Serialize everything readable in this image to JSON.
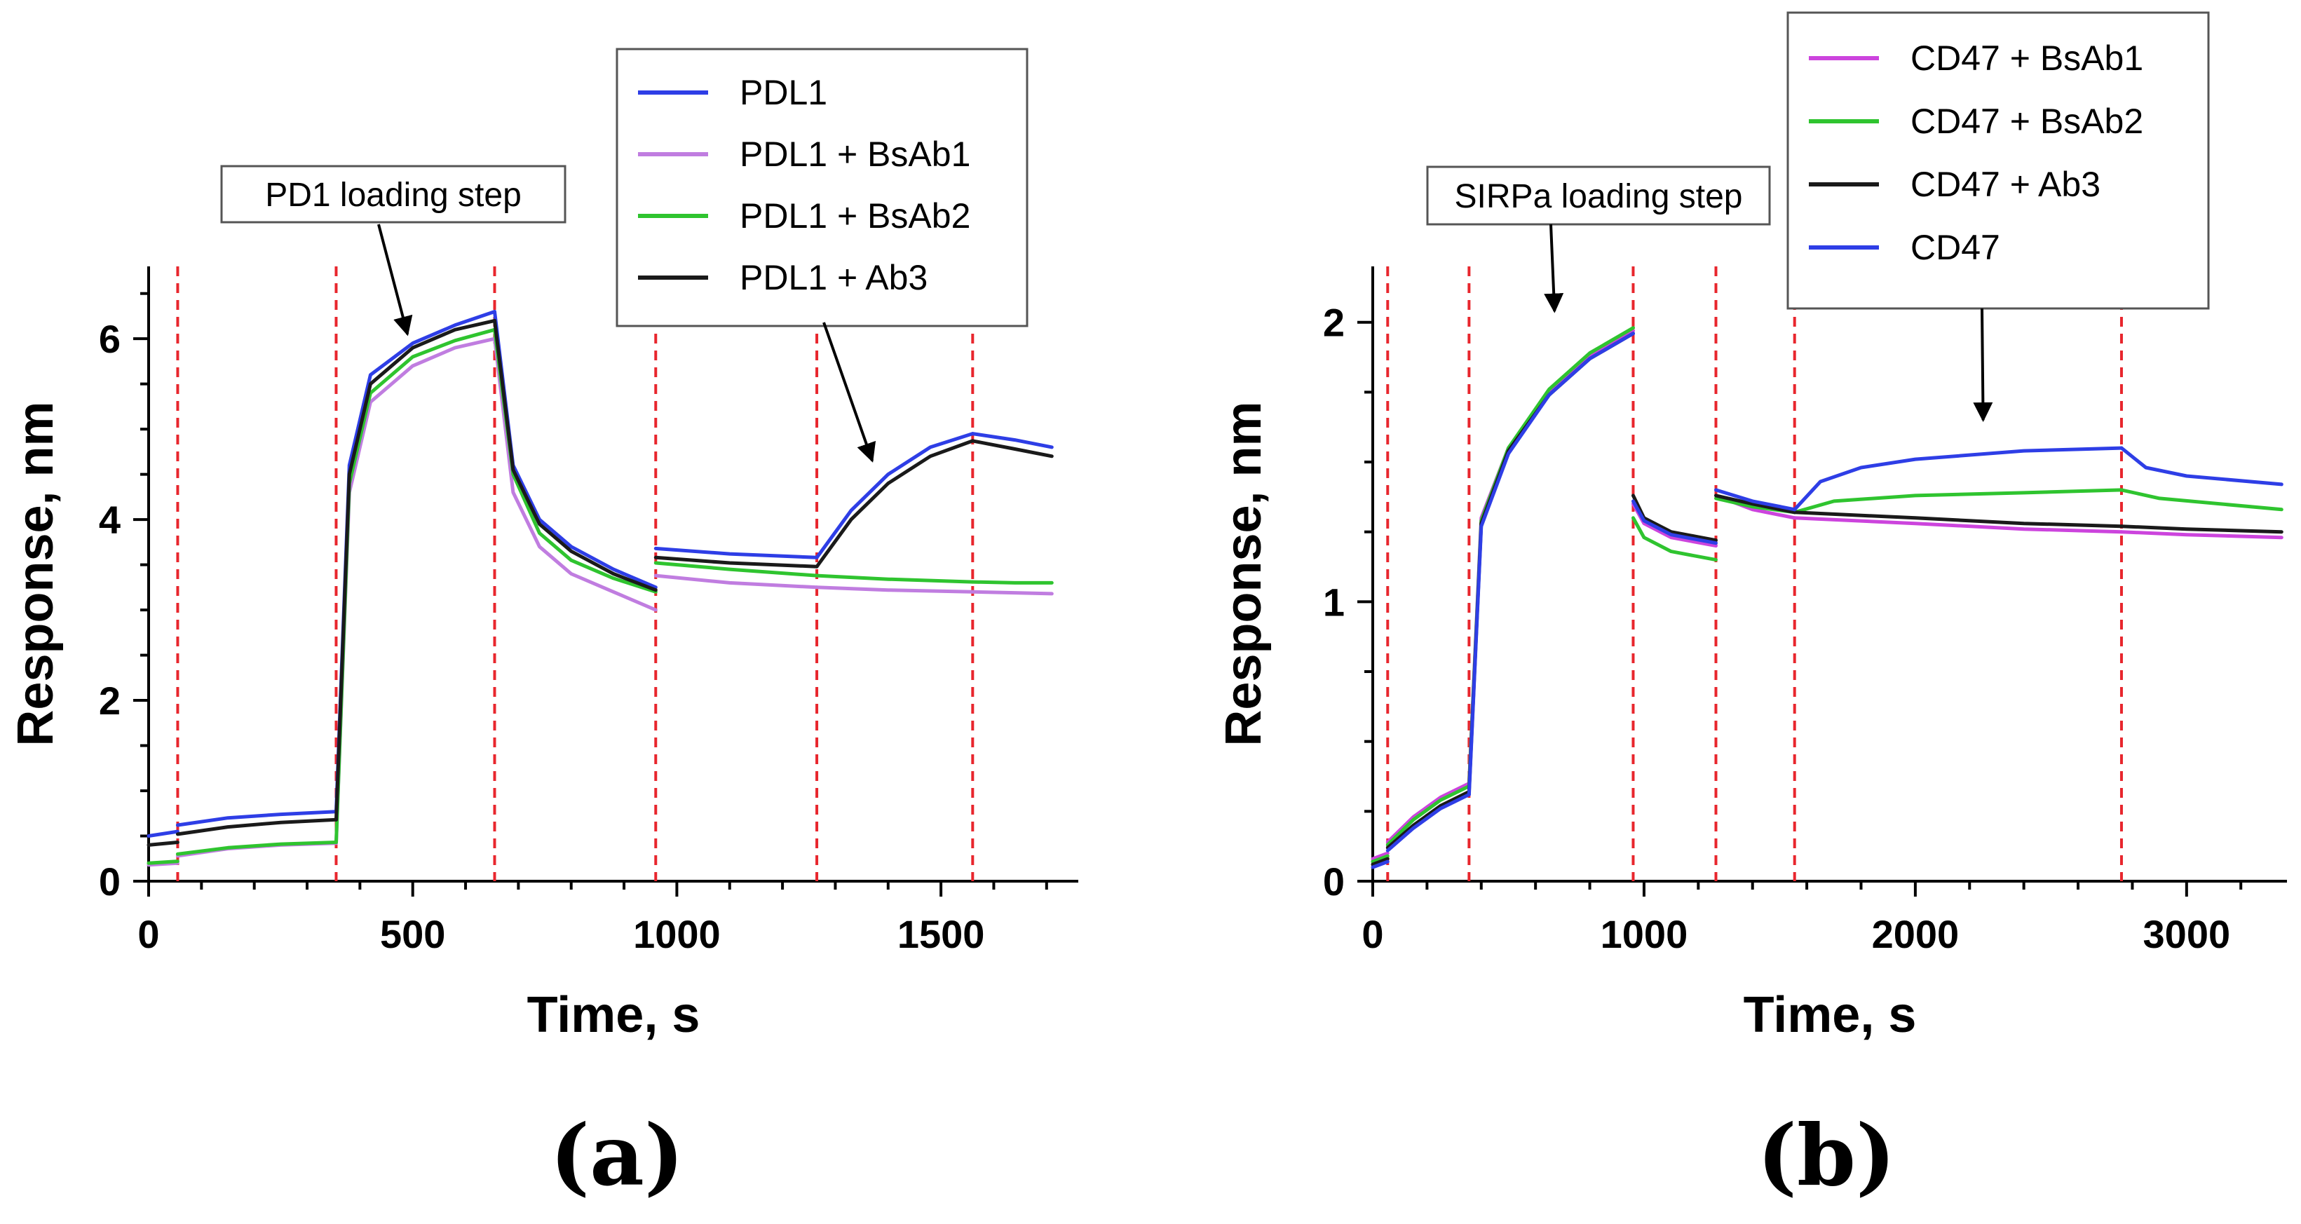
{
  "chart_data": [
    {
      "type": "line",
      "panel_label": "(a)",
      "xlabel": "Time, s",
      "ylabel": "Response, nm",
      "xlim": [
        0,
        1760
      ],
      "ylim": [
        0,
        6.8
      ],
      "xticks": [
        0,
        500,
        1000,
        1500
      ],
      "yticks": [
        0,
        2,
        4,
        6
      ],
      "step_boundaries": [
        55,
        355,
        655,
        960,
        1265,
        1560
      ],
      "legend": {
        "placement": "top-right"
      },
      "annotations": [
        {
          "text": "PD1 loading step",
          "arrow_to": [
            490,
            6.05
          ]
        },
        {
          "arrow_to": [
            1370,
            4.65
          ]
        }
      ],
      "series": [
        {
          "name": "PDL1",
          "color": "#2e3ee6",
          "segments": [
            {
              "x": [
                0,
                55
              ],
              "y": [
                0.5,
                0.55
              ]
            },
            {
              "x": [
                55,
                150,
                250,
                355
              ],
              "y": [
                0.62,
                0.7,
                0.74,
                0.77
              ]
            },
            {
              "x": [
                355,
                380,
                420,
                500,
                580,
                655
              ],
              "y": [
                0.77,
                4.6,
                5.6,
                5.95,
                6.15,
                6.3
              ]
            },
            {
              "x": [
                655,
                690,
                740,
                800,
                880,
                960
              ],
              "y": [
                6.3,
                4.6,
                4.0,
                3.7,
                3.45,
                3.25
              ]
            },
            {
              "x": [
                960,
                1100,
                1265
              ],
              "y": [
                3.68,
                3.62,
                3.58
              ]
            },
            {
              "x": [
                1265,
                1330,
                1400,
                1480,
                1560
              ],
              "y": [
                3.58,
                4.1,
                4.5,
                4.8,
                4.95
              ]
            },
            {
              "x": [
                1560,
                1640,
                1710
              ],
              "y": [
                4.95,
                4.88,
                4.8
              ]
            }
          ]
        },
        {
          "name": "PDL1 + BsAb1",
          "color": "#c07de0",
          "segments": [
            {
              "x": [
                0,
                55
              ],
              "y": [
                0.18,
                0.2
              ]
            },
            {
              "x": [
                55,
                150,
                250,
                355
              ],
              "y": [
                0.28,
                0.36,
                0.4,
                0.42
              ]
            },
            {
              "x": [
                355,
                380,
                420,
                500,
                580,
                655
              ],
              "y": [
                0.42,
                4.3,
                5.3,
                5.7,
                5.9,
                6.0
              ]
            },
            {
              "x": [
                655,
                690,
                740,
                800,
                880,
                960
              ],
              "y": [
                6.0,
                4.3,
                3.7,
                3.4,
                3.2,
                3.0
              ]
            },
            {
              "x": [
                960,
                1100,
                1265
              ],
              "y": [
                3.38,
                3.3,
                3.25
              ]
            },
            {
              "x": [
                1265,
                1400,
                1560
              ],
              "y": [
                3.25,
                3.22,
                3.2
              ]
            },
            {
              "x": [
                1560,
                1640,
                1710
              ],
              "y": [
                3.2,
                3.19,
                3.18
              ]
            }
          ]
        },
        {
          "name": "PDL1 + BsAb2",
          "color": "#2fc42f",
          "segments": [
            {
              "x": [
                0,
                55
              ],
              "y": [
                0.2,
                0.22
              ]
            },
            {
              "x": [
                55,
                150,
                250,
                355
              ],
              "y": [
                0.3,
                0.37,
                0.41,
                0.43
              ]
            },
            {
              "x": [
                355,
                380,
                420,
                500,
                580,
                655
              ],
              "y": [
                0.43,
                4.4,
                5.4,
                5.8,
                5.98,
                6.1
              ]
            },
            {
              "x": [
                655,
                690,
                740,
                800,
                880,
                960
              ],
              "y": [
                6.1,
                4.5,
                3.85,
                3.55,
                3.35,
                3.2
              ]
            },
            {
              "x": [
                960,
                1100,
                1265
              ],
              "y": [
                3.52,
                3.45,
                3.38
              ]
            },
            {
              "x": [
                1265,
                1400,
                1560
              ],
              "y": [
                3.38,
                3.34,
                3.31
              ]
            },
            {
              "x": [
                1560,
                1640,
                1710
              ],
              "y": [
                3.31,
                3.3,
                3.3
              ]
            }
          ]
        },
        {
          "name": "PDL1 + Ab3",
          "color": "#1a1a1a",
          "segments": [
            {
              "x": [
                0,
                55
              ],
              "y": [
                0.4,
                0.43
              ]
            },
            {
              "x": [
                55,
                150,
                250,
                355
              ],
              "y": [
                0.52,
                0.6,
                0.65,
                0.68
              ]
            },
            {
              "x": [
                355,
                380,
                420,
                500,
                580,
                655
              ],
              "y": [
                0.68,
                4.5,
                5.5,
                5.9,
                6.1,
                6.2
              ]
            },
            {
              "x": [
                655,
                690,
                740,
                800,
                880,
                960
              ],
              "y": [
                6.2,
                4.55,
                3.95,
                3.65,
                3.4,
                3.22
              ]
            },
            {
              "x": [
                960,
                1100,
                1265
              ],
              "y": [
                3.58,
                3.52,
                3.48
              ]
            },
            {
              "x": [
                1265,
                1330,
                1400,
                1480,
                1560
              ],
              "y": [
                3.48,
                4.0,
                4.4,
                4.7,
                4.87
              ]
            },
            {
              "x": [
                1560,
                1640,
                1710
              ],
              "y": [
                4.87,
                4.78,
                4.7
              ]
            }
          ]
        }
      ]
    },
    {
      "type": "line",
      "panel_label": "(b)",
      "xlabel": "Time, s",
      "ylabel": "Response, nm",
      "xlim": [
        0,
        3370
      ],
      "ylim": [
        0,
        2.2
      ],
      "xticks": [
        0,
        1000,
        2000,
        3000
      ],
      "yticks": [
        0,
        1,
        2
      ],
      "step_boundaries": [
        55,
        355,
        960,
        1265,
        1555,
        2760
      ],
      "legend": {
        "placement": "top-right"
      },
      "annotations": [
        {
          "text": "SIRPa loading step",
          "arrow_to": [
            670,
            2.04
          ]
        },
        {
          "arrow_to": [
            2250,
            1.65
          ]
        }
      ],
      "series": [
        {
          "name": "CD47 + BsAb1",
          "color": "#cc44dd",
          "segments": [
            {
              "x": [
                0,
                55
              ],
              "y": [
                0.08,
                0.1
              ]
            },
            {
              "x": [
                55,
                150,
                250,
                355
              ],
              "y": [
                0.14,
                0.23,
                0.3,
                0.35
              ]
            },
            {
              "x": [
                355,
                400,
                500,
                650,
                800,
                960
              ],
              "y": [
                0.35,
                1.3,
                1.55,
                1.75,
                1.88,
                1.97
              ]
            },
            {
              "x": [
                960,
                1000,
                1100,
                1265
              ],
              "y": [
                1.35,
                1.28,
                1.23,
                1.2
              ]
            },
            {
              "x": [
                1265,
                1400,
                1555
              ],
              "y": [
                1.38,
                1.33,
                1.3
              ]
            },
            {
              "x": [
                1555,
                2000,
                2400,
                2760
              ],
              "y": [
                1.3,
                1.28,
                1.26,
                1.25
              ]
            },
            {
              "x": [
                2760,
                3000,
                3350
              ],
              "y": [
                1.25,
                1.24,
                1.23
              ]
            }
          ]
        },
        {
          "name": "CD47 + BsAb2",
          "color": "#2fc42f",
          "segments": [
            {
              "x": [
                0,
                55
              ],
              "y": [
                0.07,
                0.09
              ]
            },
            {
              "x": [
                55,
                150,
                250,
                355
              ],
              "y": [
                0.13,
                0.22,
                0.29,
                0.34
              ]
            },
            {
              "x": [
                355,
                400,
                500,
                650,
                800,
                960
              ],
              "y": [
                0.34,
                1.29,
                1.55,
                1.76,
                1.89,
                1.98
              ]
            },
            {
              "x": [
                960,
                1000,
                1100,
                1265
              ],
              "y": [
                1.3,
                1.23,
                1.18,
                1.15
              ]
            },
            {
              "x": [
                1265,
                1400,
                1555
              ],
              "y": [
                1.37,
                1.34,
                1.32
              ]
            },
            {
              "x": [
                1555,
                1700,
                2000,
                2400,
                2760
              ],
              "y": [
                1.32,
                1.36,
                1.38,
                1.39,
                1.4
              ]
            },
            {
              "x": [
                2760,
                2900,
                3350
              ],
              "y": [
                1.4,
                1.37,
                1.33
              ]
            }
          ]
        },
        {
          "name": "CD47 + Ab3",
          "color": "#1a1a1a",
          "segments": [
            {
              "x": [
                0,
                55
              ],
              "y": [
                0.06,
                0.08
              ]
            },
            {
              "x": [
                55,
                150,
                250,
                355
              ],
              "y": [
                0.12,
                0.2,
                0.27,
                0.32
              ]
            },
            {
              "x": [
                355,
                400,
                500,
                650,
                800,
                960
              ],
              "y": [
                0.32,
                1.28,
                1.54,
                1.74,
                1.87,
                1.96
              ]
            },
            {
              "x": [
                960,
                1000,
                1100,
                1265
              ],
              "y": [
                1.38,
                1.3,
                1.25,
                1.22
              ]
            },
            {
              "x": [
                1265,
                1400,
                1555
              ],
              "y": [
                1.38,
                1.35,
                1.32
              ]
            },
            {
              "x": [
                1555,
                2000,
                2400,
                2760
              ],
              "y": [
                1.32,
                1.3,
                1.28,
                1.27
              ]
            },
            {
              "x": [
                2760,
                3000,
                3350
              ],
              "y": [
                1.27,
                1.26,
                1.25
              ]
            }
          ]
        },
        {
          "name": "CD47",
          "color": "#2e3ee6",
          "segments": [
            {
              "x": [
                0,
                55
              ],
              "y": [
                0.05,
                0.07
              ]
            },
            {
              "x": [
                55,
                150,
                250,
                355
              ],
              "y": [
                0.11,
                0.19,
                0.26,
                0.31
              ]
            },
            {
              "x": [
                355,
                400,
                500,
                650,
                800,
                960
              ],
              "y": [
                0.31,
                1.27,
                1.53,
                1.74,
                1.87,
                1.96
              ]
            },
            {
              "x": [
                960,
                1000,
                1100,
                1265
              ],
              "y": [
                1.36,
                1.29,
                1.24,
                1.21
              ]
            },
            {
              "x": [
                1265,
                1400,
                1555
              ],
              "y": [
                1.4,
                1.36,
                1.33
              ]
            },
            {
              "x": [
                1555,
                1650,
                1800,
                2000,
                2400,
                2760
              ],
              "y": [
                1.33,
                1.43,
                1.48,
                1.51,
                1.54,
                1.55
              ]
            },
            {
              "x": [
                2760,
                2850,
                3000,
                3350
              ],
              "y": [
                1.55,
                1.48,
                1.45,
                1.42
              ]
            }
          ]
        }
      ]
    }
  ]
}
